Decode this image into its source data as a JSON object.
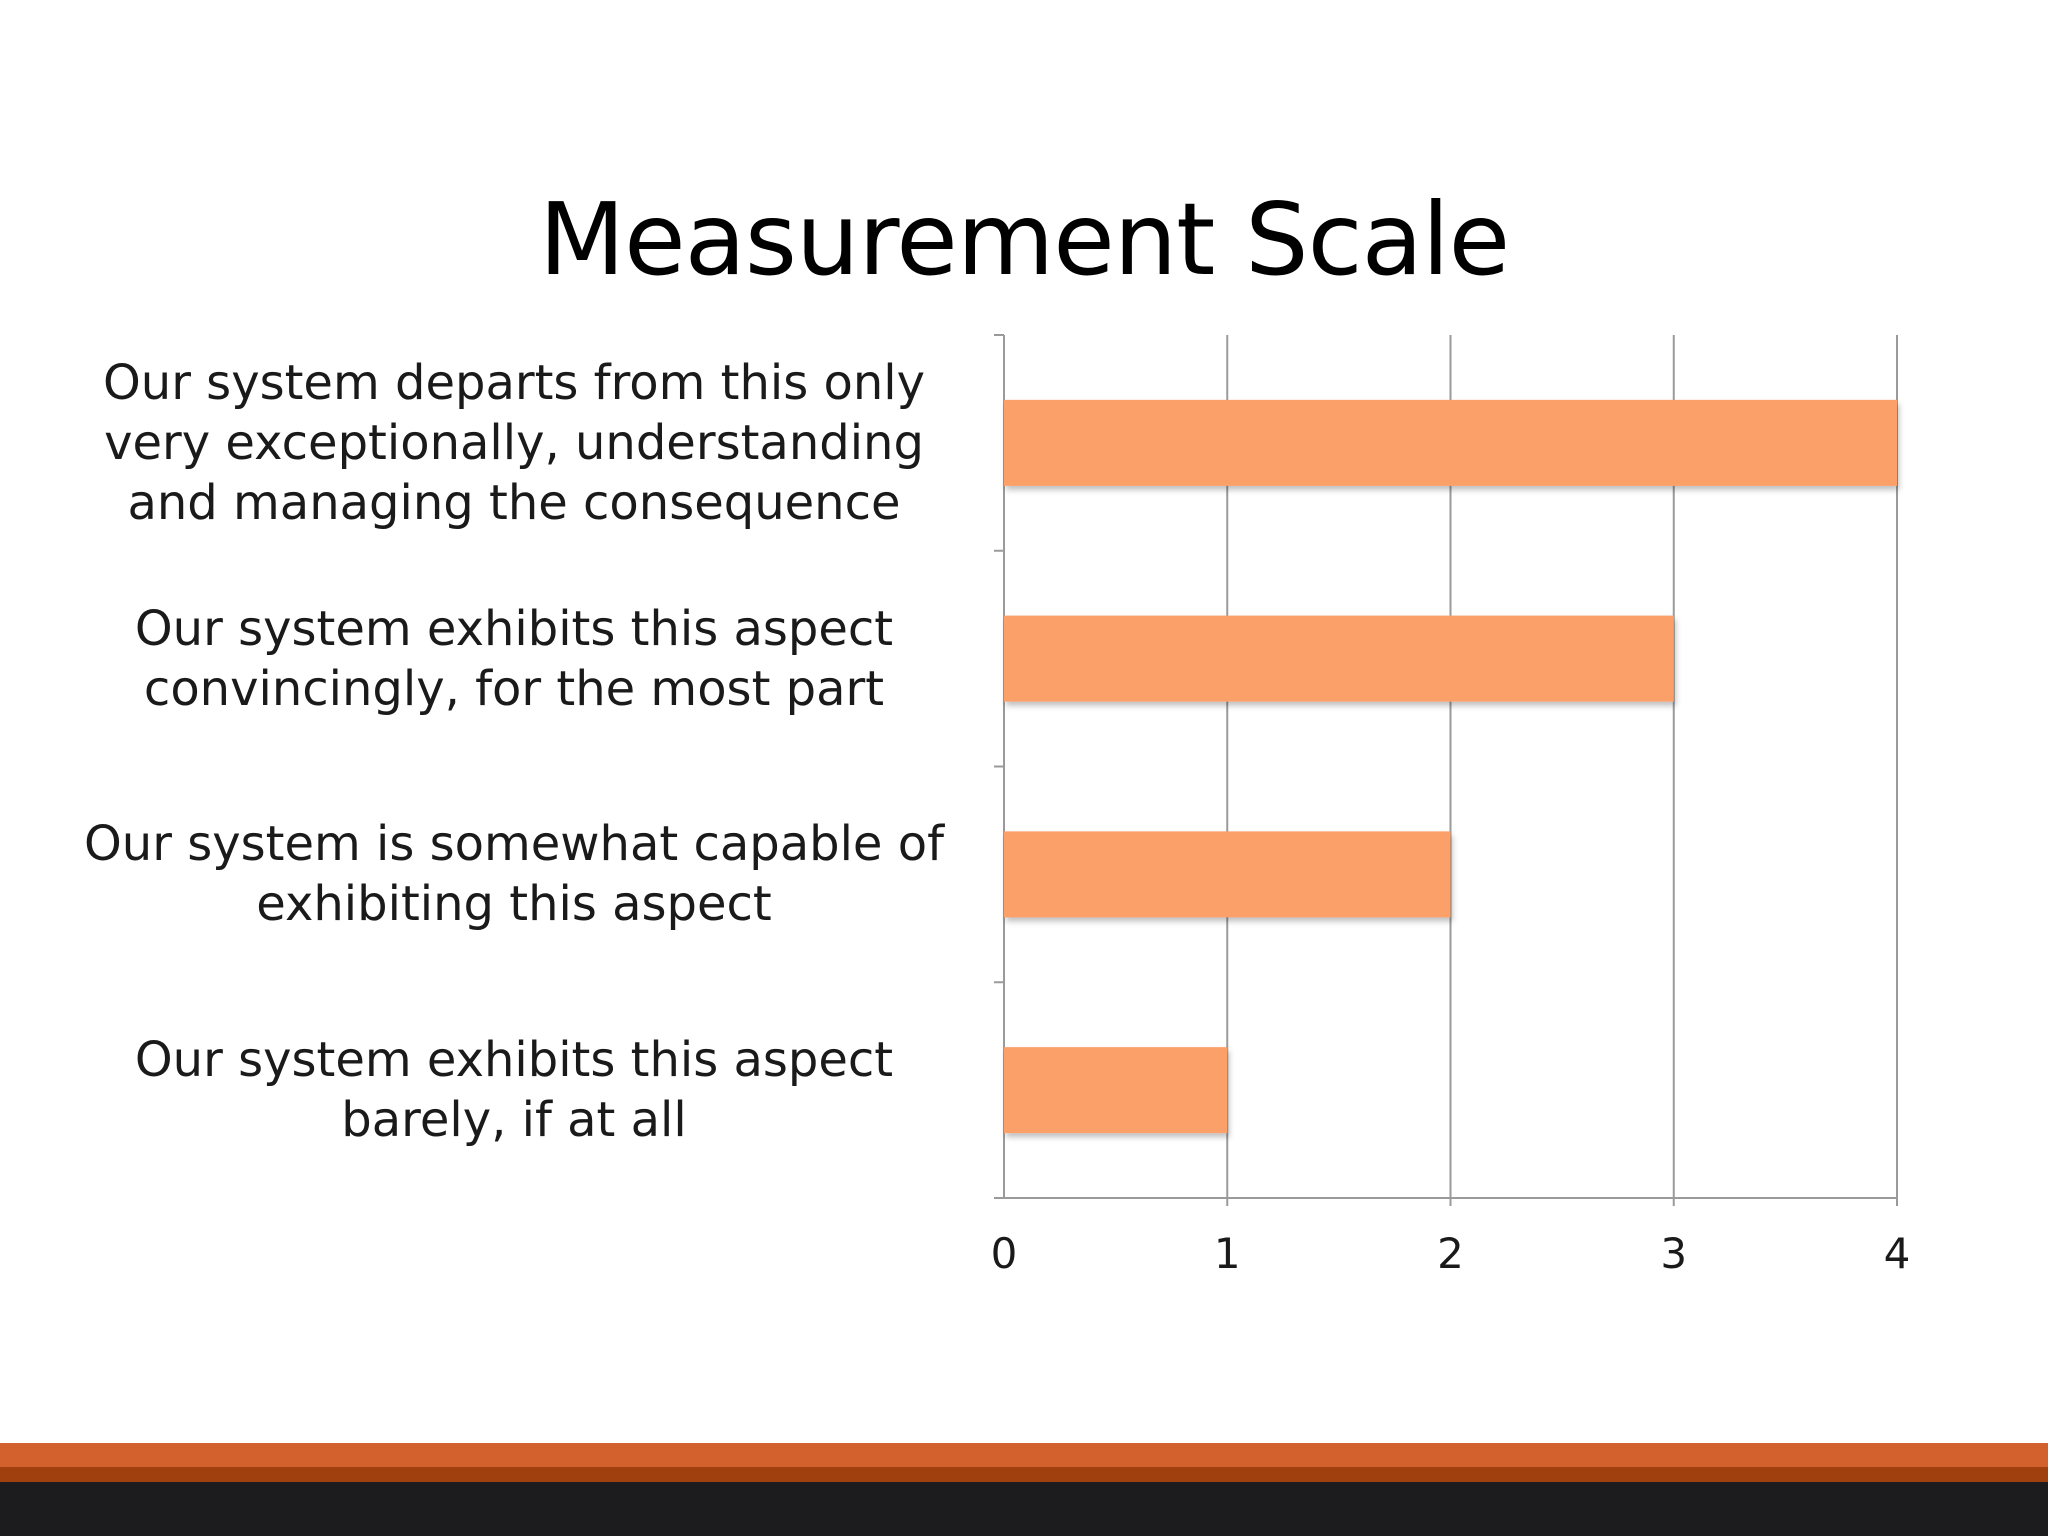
{
  "slide": {
    "title": "Measurement Scale"
  },
  "colors": {
    "bar": "#fca06a",
    "grid": "#9a9a9a",
    "footer_orange": "#d2612d",
    "footer_rust": "#a0400f",
    "footer_dark": "#1c1c1e"
  },
  "chart_data": {
    "type": "bar",
    "orientation": "horizontal",
    "categories": [
      "Our system exhibits this aspect barely, if at all",
      "Our system is somewhat capable of exhibiting this aspect",
      "Our system exhibits this aspect convincingly, for the most part",
      "Our system departs from this only very exceptionally, understanding and managing the consequence"
    ],
    "category_lines": [
      [
        "Our system exhibits this aspect",
        "barely, if at all"
      ],
      [
        "Our system is somewhat capable of",
        "exhibiting this aspect"
      ],
      [
        "Our system exhibits this aspect",
        "convincingly, for the most part"
      ],
      [
        "Our system departs from this only",
        "very exceptionally, understanding",
        "and managing the consequence"
      ]
    ],
    "values": [
      1,
      2,
      3,
      4
    ],
    "xlim": [
      0,
      4
    ],
    "xticks": [
      "0",
      "1",
      "2",
      "3",
      "4"
    ],
    "grid": true,
    "legend": "none",
    "title": "",
    "xlabel": "",
    "ylabel": ""
  }
}
